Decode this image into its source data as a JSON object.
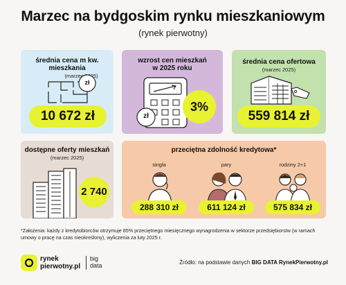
{
  "header": {
    "title": "Marzec na bydgoskim rynku mieszkaniowym",
    "subtitle": "(rynek pierwotny)"
  },
  "cards": {
    "avg_price": {
      "label_line1": "średnia cena m kw.",
      "label_line2": "mieszkania",
      "period": "(marzec 2025)",
      "value": "10 672 zł",
      "coin_symbol": "zł"
    },
    "growth": {
      "label_line1": "wzrost cen mieszkań",
      "label_line2": "w 2025 roku",
      "value": "3%",
      "coin_symbol": "zł"
    },
    "offer_price": {
      "label": "średnia cena ofertowa",
      "period": "(marzec 2025)",
      "value": "559 814 zł"
    },
    "available": {
      "label": "dostępne oferty mieszkań",
      "period": "(marzec 2025)",
      "value": "2 740"
    },
    "capacity": {
      "label": "przeciętna zdolność kredytowa*",
      "groups": [
        {
          "label": "singla",
          "value": "288 310 zł"
        },
        {
          "label": "pary",
          "value": "611 124 zł"
        },
        {
          "label": "rodziny 2+1",
          "value": "575 834 zł"
        }
      ]
    }
  },
  "footnote": "*Założenia: każdy z kredytobiorców otrzymuje 85% przeciętnego miesięcznego wynagrodzenia w sektorze przedsiębiorstw (w ramach umowy o pracę na czas nieokreślony), wyliczenia za luty 2025 r.",
  "footer": {
    "logo_line1": "rynek",
    "logo_line2": "pierwotny.pl",
    "partner_line1": "big",
    "partner_line2": "data",
    "source_prefix": "Źródło: na podstawie danych",
    "source_bold": "BIG DATA RynekPierwotny.pl"
  },
  "colors": {
    "accent_yellow": "#e8f230",
    "card_blue": "#d7ecf6",
    "card_purple": "#d4b8dc",
    "card_green": "#c2e1ad",
    "card_beige": "#e6dcd4",
    "card_orange": "#f6c9a8"
  },
  "icons": [
    "floor-plan-icon",
    "coin-icon",
    "calculator-icon",
    "building-price-tag-icon",
    "skyscrapers-icon",
    "single-person-icon",
    "couple-icon",
    "family-icon",
    "logo-icon"
  ]
}
